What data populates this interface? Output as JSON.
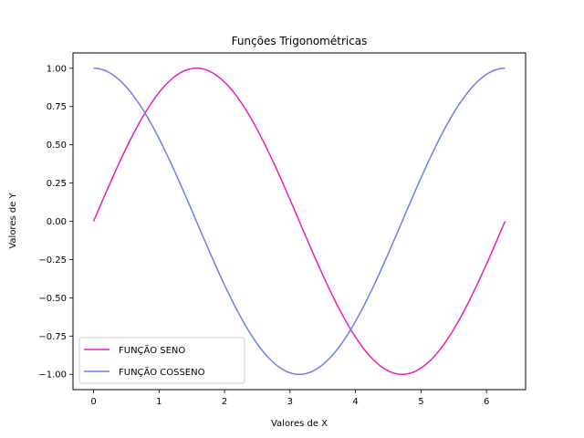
{
  "chart_data": {
    "type": "line",
    "title": "Funções Trigonométricas",
    "xlabel": "Valores de X",
    "ylabel": "Valores de Y",
    "xlim": [
      -0.314,
      6.597
    ],
    "ylim": [
      -1.1,
      1.1
    ],
    "xticks": [
      0,
      1,
      2,
      3,
      4,
      5,
      6
    ],
    "yticks": [
      -1.0,
      -0.75,
      -0.5,
      -0.25,
      0.0,
      0.25,
      0.5,
      0.75,
      1.0
    ],
    "ytick_labels": [
      "−1.00",
      "−0.75",
      "−0.50",
      "−0.25",
      "0.00",
      "0.25",
      "0.50",
      "0.75",
      "1.00"
    ],
    "xtick_labels": [
      "0",
      "1",
      "2",
      "3",
      "4",
      "5",
      "6"
    ],
    "legend_position": "lower-left",
    "grid": false,
    "x_range": [
      0,
      6.2832
    ],
    "series": [
      {
        "name": "FUNÇÃO SENO",
        "function": "sin",
        "color": "#ec1fb5",
        "x": [
          0,
          0.3307,
          0.6614,
          0.9921,
          1.3228,
          1.6535,
          1.9842,
          2.3149,
          2.6456,
          2.9762,
          3.3069,
          3.6376,
          3.9683,
          4.299,
          4.6297,
          4.9604,
          5.2911,
          5.6218,
          5.9525,
          6.2832
        ],
        "values": [
          0,
          0.3247,
          0.6142,
          0.8372,
          0.9694,
          0.9966,
          0.9158,
          0.7357,
          0.4759,
          0.1646,
          -0.1646,
          -0.4759,
          -0.7357,
          -0.9158,
          -0.9966,
          -0.9694,
          -0.8372,
          -0.6142,
          -0.3247,
          0
        ]
      },
      {
        "name": "FUNÇÃO COSSENO",
        "function": "cos",
        "color": "#6b7cf7",
        "x": [
          0,
          0.3307,
          0.6614,
          0.9921,
          1.3228,
          1.6535,
          1.9842,
          2.3149,
          2.6456,
          2.9762,
          3.3069,
          3.6376,
          3.9683,
          4.299,
          4.6297,
          4.9604,
          5.2911,
          5.6218,
          5.9525,
          6.2832
        ],
        "values": [
          1,
          0.9458,
          0.7891,
          0.5469,
          0.2455,
          -0.0826,
          -0.4017,
          -0.6773,
          -0.8795,
          -0.9864,
          -0.9864,
          -0.8795,
          -0.6773,
          -0.4017,
          -0.0826,
          0.2455,
          0.5469,
          0.7891,
          0.9458,
          1
        ]
      }
    ]
  }
}
